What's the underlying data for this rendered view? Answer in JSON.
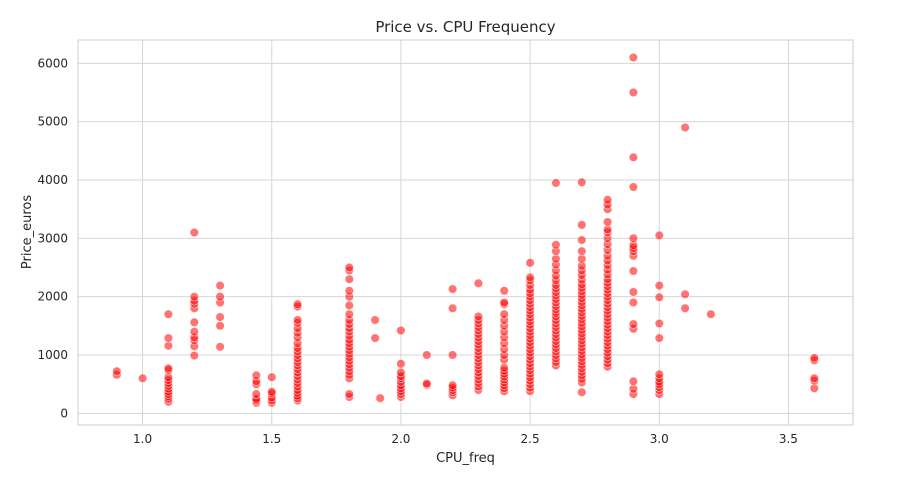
{
  "chart_data": {
    "type": "scatter",
    "title": "Price vs. CPU Frequency",
    "xlabel": "CPU_freq",
    "ylabel": "Price_euros",
    "xlim": [
      0.75,
      3.75
    ],
    "ylim": [
      -200,
      6400
    ],
    "xticks": [
      1.0,
      1.5,
      2.0,
      2.5,
      3.0,
      3.5
    ],
    "xtick_labels": [
      "1.0",
      "1.5",
      "2.0",
      "2.5",
      "3.0",
      "3.5"
    ],
    "yticks": [
      0,
      1000,
      2000,
      3000,
      4000,
      5000,
      6000
    ],
    "ytick_labels": [
      "0",
      "1000",
      "2000",
      "3000",
      "4000",
      "5000",
      "6000"
    ],
    "grid": true,
    "marker_color": "#ff0000",
    "marker_alpha": 0.55,
    "points": [
      {
        "x": 0.9,
        "y": 660
      },
      {
        "x": 0.9,
        "y": 720
      },
      {
        "x": 1.0,
        "y": 600
      },
      {
        "x": 1.1,
        "y": 200
      },
      {
        "x": 1.1,
        "y": 250
      },
      {
        "x": 1.1,
        "y": 290
      },
      {
        "x": 1.1,
        "y": 330
      },
      {
        "x": 1.1,
        "y": 370
      },
      {
        "x": 1.1,
        "y": 420
      },
      {
        "x": 1.1,
        "y": 470
      },
      {
        "x": 1.1,
        "y": 520
      },
      {
        "x": 1.1,
        "y": 570
      },
      {
        "x": 1.1,
        "y": 620
      },
      {
        "x": 1.1,
        "y": 740
      },
      {
        "x": 1.1,
        "y": 770
      },
      {
        "x": 1.1,
        "y": 1160
      },
      {
        "x": 1.1,
        "y": 1290
      },
      {
        "x": 1.1,
        "y": 1700
      },
      {
        "x": 1.2,
        "y": 990
      },
      {
        "x": 1.2,
        "y": 1150
      },
      {
        "x": 1.2,
        "y": 1250
      },
      {
        "x": 1.2,
        "y": 1300
      },
      {
        "x": 1.2,
        "y": 1400
      },
      {
        "x": 1.2,
        "y": 1560
      },
      {
        "x": 1.2,
        "y": 1800
      },
      {
        "x": 1.2,
        "y": 1880
      },
      {
        "x": 1.2,
        "y": 1930
      },
      {
        "x": 1.2,
        "y": 2000
      },
      {
        "x": 1.2,
        "y": 3100
      },
      {
        "x": 1.3,
        "y": 1140
      },
      {
        "x": 1.3,
        "y": 1500
      },
      {
        "x": 1.3,
        "y": 1650
      },
      {
        "x": 1.3,
        "y": 1900
      },
      {
        "x": 1.3,
        "y": 2000
      },
      {
        "x": 1.3,
        "y": 2190
      },
      {
        "x": 1.44,
        "y": 180
      },
      {
        "x": 1.44,
        "y": 220
      },
      {
        "x": 1.44,
        "y": 250
      },
      {
        "x": 1.44,
        "y": 330
      },
      {
        "x": 1.44,
        "y": 500
      },
      {
        "x": 1.44,
        "y": 550
      },
      {
        "x": 1.44,
        "y": 650
      },
      {
        "x": 1.5,
        "y": 180
      },
      {
        "x": 1.5,
        "y": 220
      },
      {
        "x": 1.5,
        "y": 270
      },
      {
        "x": 1.5,
        "y": 340
      },
      {
        "x": 1.5,
        "y": 370
      },
      {
        "x": 1.5,
        "y": 620
      },
      {
        "x": 1.6,
        "y": 220
      },
      {
        "x": 1.6,
        "y": 260
      },
      {
        "x": 1.6,
        "y": 300
      },
      {
        "x": 1.6,
        "y": 350
      },
      {
        "x": 1.6,
        "y": 400
      },
      {
        "x": 1.6,
        "y": 460
      },
      {
        "x": 1.6,
        "y": 520
      },
      {
        "x": 1.6,
        "y": 580
      },
      {
        "x": 1.6,
        "y": 640
      },
      {
        "x": 1.6,
        "y": 700
      },
      {
        "x": 1.6,
        "y": 760
      },
      {
        "x": 1.6,
        "y": 820
      },
      {
        "x": 1.6,
        "y": 880
      },
      {
        "x": 1.6,
        "y": 940
      },
      {
        "x": 1.6,
        "y": 1000
      },
      {
        "x": 1.6,
        "y": 1060
      },
      {
        "x": 1.6,
        "y": 1120
      },
      {
        "x": 1.6,
        "y": 1200
      },
      {
        "x": 1.6,
        "y": 1300
      },
      {
        "x": 1.6,
        "y": 1380
      },
      {
        "x": 1.6,
        "y": 1460
      },
      {
        "x": 1.6,
        "y": 1550
      },
      {
        "x": 1.6,
        "y": 1600
      },
      {
        "x": 1.6,
        "y": 1830
      },
      {
        "x": 1.6,
        "y": 1870
      },
      {
        "x": 1.8,
        "y": 280
      },
      {
        "x": 1.8,
        "y": 330
      },
      {
        "x": 1.8,
        "y": 600
      },
      {
        "x": 1.8,
        "y": 660
      },
      {
        "x": 1.8,
        "y": 720
      },
      {
        "x": 1.8,
        "y": 780
      },
      {
        "x": 1.8,
        "y": 840
      },
      {
        "x": 1.8,
        "y": 900
      },
      {
        "x": 1.8,
        "y": 960
      },
      {
        "x": 1.8,
        "y": 1020
      },
      {
        "x": 1.8,
        "y": 1080
      },
      {
        "x": 1.8,
        "y": 1140
      },
      {
        "x": 1.8,
        "y": 1200
      },
      {
        "x": 1.8,
        "y": 1260
      },
      {
        "x": 1.8,
        "y": 1330
      },
      {
        "x": 1.8,
        "y": 1400
      },
      {
        "x": 1.8,
        "y": 1460
      },
      {
        "x": 1.8,
        "y": 1530
      },
      {
        "x": 1.8,
        "y": 1600
      },
      {
        "x": 1.8,
        "y": 1700
      },
      {
        "x": 1.8,
        "y": 1850
      },
      {
        "x": 1.8,
        "y": 2000
      },
      {
        "x": 1.8,
        "y": 2100
      },
      {
        "x": 1.8,
        "y": 2300
      },
      {
        "x": 1.8,
        "y": 2450
      },
      {
        "x": 1.8,
        "y": 2500
      },
      {
        "x": 1.9,
        "y": 1290
      },
      {
        "x": 1.9,
        "y": 1600
      },
      {
        "x": 1.92,
        "y": 260
      },
      {
        "x": 2.0,
        "y": 280
      },
      {
        "x": 2.0,
        "y": 330
      },
      {
        "x": 2.0,
        "y": 380
      },
      {
        "x": 2.0,
        "y": 430
      },
      {
        "x": 2.0,
        "y": 480
      },
      {
        "x": 2.0,
        "y": 540
      },
      {
        "x": 2.0,
        "y": 600
      },
      {
        "x": 2.0,
        "y": 640
      },
      {
        "x": 2.0,
        "y": 700
      },
      {
        "x": 2.0,
        "y": 850
      },
      {
        "x": 2.0,
        "y": 1420
      },
      {
        "x": 2.1,
        "y": 490
      },
      {
        "x": 2.1,
        "y": 510
      },
      {
        "x": 2.1,
        "y": 1000
      },
      {
        "x": 2.2,
        "y": 310
      },
      {
        "x": 2.2,
        "y": 360
      },
      {
        "x": 2.2,
        "y": 400
      },
      {
        "x": 2.2,
        "y": 440
      },
      {
        "x": 2.2,
        "y": 480
      },
      {
        "x": 2.2,
        "y": 1000
      },
      {
        "x": 2.2,
        "y": 1800
      },
      {
        "x": 2.2,
        "y": 2130
      },
      {
        "x": 2.3,
        "y": 400
      },
      {
        "x": 2.3,
        "y": 460
      },
      {
        "x": 2.3,
        "y": 520
      },
      {
        "x": 2.3,
        "y": 580
      },
      {
        "x": 2.3,
        "y": 640
      },
      {
        "x": 2.3,
        "y": 700
      },
      {
        "x": 2.3,
        "y": 760
      },
      {
        "x": 2.3,
        "y": 820
      },
      {
        "x": 2.3,
        "y": 880
      },
      {
        "x": 2.3,
        "y": 940
      },
      {
        "x": 2.3,
        "y": 1000
      },
      {
        "x": 2.3,
        "y": 1060
      },
      {
        "x": 2.3,
        "y": 1120
      },
      {
        "x": 2.3,
        "y": 1180
      },
      {
        "x": 2.3,
        "y": 1240
      },
      {
        "x": 2.3,
        "y": 1300
      },
      {
        "x": 2.3,
        "y": 1360
      },
      {
        "x": 2.3,
        "y": 1420
      },
      {
        "x": 2.3,
        "y": 1480
      },
      {
        "x": 2.3,
        "y": 1540
      },
      {
        "x": 2.3,
        "y": 1600
      },
      {
        "x": 2.3,
        "y": 1660
      },
      {
        "x": 2.3,
        "y": 2230
      },
      {
        "x": 2.4,
        "y": 380
      },
      {
        "x": 2.4,
        "y": 430
      },
      {
        "x": 2.4,
        "y": 480
      },
      {
        "x": 2.4,
        "y": 530
      },
      {
        "x": 2.4,
        "y": 580
      },
      {
        "x": 2.4,
        "y": 630
      },
      {
        "x": 2.4,
        "y": 680
      },
      {
        "x": 2.4,
        "y": 730
      },
      {
        "x": 2.4,
        "y": 780
      },
      {
        "x": 2.4,
        "y": 920
      },
      {
        "x": 2.4,
        "y": 1000
      },
      {
        "x": 2.4,
        "y": 1100
      },
      {
        "x": 2.4,
        "y": 1200
      },
      {
        "x": 2.4,
        "y": 1300
      },
      {
        "x": 2.4,
        "y": 1400
      },
      {
        "x": 2.4,
        "y": 1500
      },
      {
        "x": 2.4,
        "y": 1600
      },
      {
        "x": 2.4,
        "y": 1700
      },
      {
        "x": 2.4,
        "y": 1870
      },
      {
        "x": 2.4,
        "y": 1900
      },
      {
        "x": 2.4,
        "y": 2100
      },
      {
        "x": 2.5,
        "y": 380
      },
      {
        "x": 2.5,
        "y": 440
      },
      {
        "x": 2.5,
        "y": 500
      },
      {
        "x": 2.5,
        "y": 560
      },
      {
        "x": 2.5,
        "y": 620
      },
      {
        "x": 2.5,
        "y": 680
      },
      {
        "x": 2.5,
        "y": 740
      },
      {
        "x": 2.5,
        "y": 800
      },
      {
        "x": 2.5,
        "y": 860
      },
      {
        "x": 2.5,
        "y": 920
      },
      {
        "x": 2.5,
        "y": 980
      },
      {
        "x": 2.5,
        "y": 1040
      },
      {
        "x": 2.5,
        "y": 1100
      },
      {
        "x": 2.5,
        "y": 1160
      },
      {
        "x": 2.5,
        "y": 1220
      },
      {
        "x": 2.5,
        "y": 1280
      },
      {
        "x": 2.5,
        "y": 1340
      },
      {
        "x": 2.5,
        "y": 1400
      },
      {
        "x": 2.5,
        "y": 1460
      },
      {
        "x": 2.5,
        "y": 1520
      },
      {
        "x": 2.5,
        "y": 1580
      },
      {
        "x": 2.5,
        "y": 1640
      },
      {
        "x": 2.5,
        "y": 1700
      },
      {
        "x": 2.5,
        "y": 1760
      },
      {
        "x": 2.5,
        "y": 1820
      },
      {
        "x": 2.5,
        "y": 1880
      },
      {
        "x": 2.5,
        "y": 1940
      },
      {
        "x": 2.5,
        "y": 2000
      },
      {
        "x": 2.5,
        "y": 2060
      },
      {
        "x": 2.5,
        "y": 2120
      },
      {
        "x": 2.5,
        "y": 2200
      },
      {
        "x": 2.5,
        "y": 2280
      },
      {
        "x": 2.5,
        "y": 2330
      },
      {
        "x": 2.5,
        "y": 2580
      },
      {
        "x": 2.6,
        "y": 820
      },
      {
        "x": 2.6,
        "y": 880
      },
      {
        "x": 2.6,
        "y": 940
      },
      {
        "x": 2.6,
        "y": 1000
      },
      {
        "x": 2.6,
        "y": 1060
      },
      {
        "x": 2.6,
        "y": 1120
      },
      {
        "x": 2.6,
        "y": 1180
      },
      {
        "x": 2.6,
        "y": 1240
      },
      {
        "x": 2.6,
        "y": 1300
      },
      {
        "x": 2.6,
        "y": 1360
      },
      {
        "x": 2.6,
        "y": 1420
      },
      {
        "x": 2.6,
        "y": 1480
      },
      {
        "x": 2.6,
        "y": 1540
      },
      {
        "x": 2.6,
        "y": 1600
      },
      {
        "x": 2.6,
        "y": 1660
      },
      {
        "x": 2.6,
        "y": 1720
      },
      {
        "x": 2.6,
        "y": 1780
      },
      {
        "x": 2.6,
        "y": 1840
      },
      {
        "x": 2.6,
        "y": 1900
      },
      {
        "x": 2.6,
        "y": 1960
      },
      {
        "x": 2.6,
        "y": 2020
      },
      {
        "x": 2.6,
        "y": 2080
      },
      {
        "x": 2.6,
        "y": 2140
      },
      {
        "x": 2.6,
        "y": 2200
      },
      {
        "x": 2.6,
        "y": 2280
      },
      {
        "x": 2.6,
        "y": 2360
      },
      {
        "x": 2.6,
        "y": 2450
      },
      {
        "x": 2.6,
        "y": 2550
      },
      {
        "x": 2.6,
        "y": 2650
      },
      {
        "x": 2.6,
        "y": 2780
      },
      {
        "x": 2.6,
        "y": 2890
      },
      {
        "x": 2.6,
        "y": 3950
      },
      {
        "x": 2.7,
        "y": 360
      },
      {
        "x": 2.7,
        "y": 530
      },
      {
        "x": 2.7,
        "y": 590
      },
      {
        "x": 2.7,
        "y": 650
      },
      {
        "x": 2.7,
        "y": 710
      },
      {
        "x": 2.7,
        "y": 770
      },
      {
        "x": 2.7,
        "y": 830
      },
      {
        "x": 2.7,
        "y": 890
      },
      {
        "x": 2.7,
        "y": 950
      },
      {
        "x": 2.7,
        "y": 1010
      },
      {
        "x": 2.7,
        "y": 1070
      },
      {
        "x": 2.7,
        "y": 1130
      },
      {
        "x": 2.7,
        "y": 1190
      },
      {
        "x": 2.7,
        "y": 1250
      },
      {
        "x": 2.7,
        "y": 1310
      },
      {
        "x": 2.7,
        "y": 1370
      },
      {
        "x": 2.7,
        "y": 1430
      },
      {
        "x": 2.7,
        "y": 1490
      },
      {
        "x": 2.7,
        "y": 1550
      },
      {
        "x": 2.7,
        "y": 1610
      },
      {
        "x": 2.7,
        "y": 1670
      },
      {
        "x": 2.7,
        "y": 1730
      },
      {
        "x": 2.7,
        "y": 1790
      },
      {
        "x": 2.7,
        "y": 1850
      },
      {
        "x": 2.7,
        "y": 1910
      },
      {
        "x": 2.7,
        "y": 1970
      },
      {
        "x": 2.7,
        "y": 2030
      },
      {
        "x": 2.7,
        "y": 2090
      },
      {
        "x": 2.7,
        "y": 2150
      },
      {
        "x": 2.7,
        "y": 2210
      },
      {
        "x": 2.7,
        "y": 2290
      },
      {
        "x": 2.7,
        "y": 2370
      },
      {
        "x": 2.7,
        "y": 2450
      },
      {
        "x": 2.7,
        "y": 2530
      },
      {
        "x": 2.7,
        "y": 2650
      },
      {
        "x": 2.7,
        "y": 2780
      },
      {
        "x": 2.7,
        "y": 2970
      },
      {
        "x": 2.7,
        "y": 3230
      },
      {
        "x": 2.7,
        "y": 3960
      },
      {
        "x": 2.8,
        "y": 800
      },
      {
        "x": 2.8,
        "y": 860
      },
      {
        "x": 2.8,
        "y": 920
      },
      {
        "x": 2.8,
        "y": 980
      },
      {
        "x": 2.8,
        "y": 1040
      },
      {
        "x": 2.8,
        "y": 1100
      },
      {
        "x": 2.8,
        "y": 1160
      },
      {
        "x": 2.8,
        "y": 1220
      },
      {
        "x": 2.8,
        "y": 1280
      },
      {
        "x": 2.8,
        "y": 1340
      },
      {
        "x": 2.8,
        "y": 1400
      },
      {
        "x": 2.8,
        "y": 1460
      },
      {
        "x": 2.8,
        "y": 1520
      },
      {
        "x": 2.8,
        "y": 1580
      },
      {
        "x": 2.8,
        "y": 1640
      },
      {
        "x": 2.8,
        "y": 1700
      },
      {
        "x": 2.8,
        "y": 1760
      },
      {
        "x": 2.8,
        "y": 1820
      },
      {
        "x": 2.8,
        "y": 1880
      },
      {
        "x": 2.8,
        "y": 1940
      },
      {
        "x": 2.8,
        "y": 2000
      },
      {
        "x": 2.8,
        "y": 2060
      },
      {
        "x": 2.8,
        "y": 2120
      },
      {
        "x": 2.8,
        "y": 2180
      },
      {
        "x": 2.8,
        "y": 2240
      },
      {
        "x": 2.8,
        "y": 2300
      },
      {
        "x": 2.8,
        "y": 2380
      },
      {
        "x": 2.8,
        "y": 2460
      },
      {
        "x": 2.8,
        "y": 2540
      },
      {
        "x": 2.8,
        "y": 2620
      },
      {
        "x": 2.8,
        "y": 2700
      },
      {
        "x": 2.8,
        "y": 2800
      },
      {
        "x": 2.8,
        "y": 2900
      },
      {
        "x": 2.8,
        "y": 3000
      },
      {
        "x": 2.8,
        "y": 3100
      },
      {
        "x": 2.8,
        "y": 3150
      },
      {
        "x": 2.8,
        "y": 3280
      },
      {
        "x": 2.8,
        "y": 3500
      },
      {
        "x": 2.8,
        "y": 3580
      },
      {
        "x": 2.8,
        "y": 3660
      },
      {
        "x": 2.9,
        "y": 330
      },
      {
        "x": 2.9,
        "y": 420
      },
      {
        "x": 2.9,
        "y": 550
      },
      {
        "x": 2.9,
        "y": 1450
      },
      {
        "x": 2.9,
        "y": 1530
      },
      {
        "x": 2.9,
        "y": 1900
      },
      {
        "x": 2.9,
        "y": 2080
      },
      {
        "x": 2.9,
        "y": 2440
      },
      {
        "x": 2.9,
        "y": 2700
      },
      {
        "x": 2.9,
        "y": 2780
      },
      {
        "x": 2.9,
        "y": 2830
      },
      {
        "x": 2.9,
        "y": 2880
      },
      {
        "x": 2.9,
        "y": 3000
      },
      {
        "x": 2.9,
        "y": 3880
      },
      {
        "x": 2.9,
        "y": 4390
      },
      {
        "x": 2.9,
        "y": 5500
      },
      {
        "x": 2.9,
        "y": 6100
      },
      {
        "x": 3.0,
        "y": 330
      },
      {
        "x": 3.0,
        "y": 400
      },
      {
        "x": 3.0,
        "y": 450
      },
      {
        "x": 3.0,
        "y": 500
      },
      {
        "x": 3.0,
        "y": 540
      },
      {
        "x": 3.0,
        "y": 600
      },
      {
        "x": 3.0,
        "y": 670
      },
      {
        "x": 3.0,
        "y": 1290
      },
      {
        "x": 3.0,
        "y": 1540
      },
      {
        "x": 3.0,
        "y": 1990
      },
      {
        "x": 3.0,
        "y": 2190
      },
      {
        "x": 3.0,
        "y": 3050
      },
      {
        "x": 3.1,
        "y": 1800
      },
      {
        "x": 3.1,
        "y": 2040
      },
      {
        "x": 3.1,
        "y": 4900
      },
      {
        "x": 3.2,
        "y": 1700
      },
      {
        "x": 3.6,
        "y": 430
      },
      {
        "x": 3.6,
        "y": 560
      },
      {
        "x": 3.6,
        "y": 600
      },
      {
        "x": 3.6,
        "y": 910
      },
      {
        "x": 3.6,
        "y": 950
      }
    ]
  }
}
